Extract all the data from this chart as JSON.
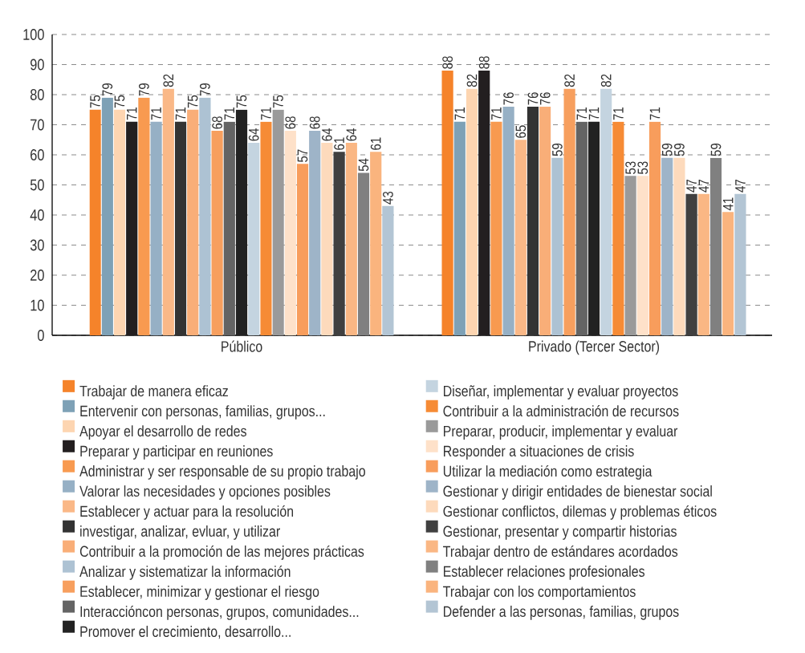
{
  "chart_data": {
    "type": "bar",
    "categories": [
      "Público",
      "Privado (Tercer Sector)"
    ],
    "series": [
      {
        "name": "Trabajar de manera eficaz",
        "color": "#f5832a",
        "values": [
          75,
          88
        ]
      },
      {
        "name": "Entervenir con personas, familias, grupos...",
        "color": "#7ea1b6",
        "values": [
          79,
          71
        ]
      },
      {
        "name": "Apoyar el desarrollo de redes",
        "color": "#fdd5b1",
        "values": [
          75,
          82
        ]
      },
      {
        "name": "Preparar y participar en reuniones",
        "color": "#231f20",
        "values": [
          71,
          88
        ]
      },
      {
        "name": "Administrar y ser responsable de su propio trabajo",
        "color": "#f89a50",
        "values": [
          79,
          71
        ]
      },
      {
        "name": "Valorar las necesidades y opciones posibles",
        "color": "#96b0c5",
        "values": [
          71,
          76
        ]
      },
      {
        "name": "Establecer y actuar para la resolución",
        "color": "#fab887",
        "values": [
          82,
          65
        ]
      },
      {
        "name": "investigar, analizar, evluar, y utilizar",
        "color": "#333333",
        "values": [
          71,
          76
        ]
      },
      {
        "name": "Contribuir a la promoción de las mejores prácticas",
        "color": "#f9ae78",
        "values": [
          75,
          76
        ]
      },
      {
        "name": "Analizar y sistematizar la información",
        "color": "#adc2d3",
        "values": [
          79,
          59
        ]
      },
      {
        "name": "Establecer, minimizar y gestionar el riesgo",
        "color": "#f79f5e",
        "values": [
          68,
          82
        ]
      },
      {
        "name": "Interaccióncon personas, grupos, comunidades...",
        "color": "#646464",
        "values": [
          71,
          71
        ]
      },
      {
        "name": "Promover el crecimiento, desarrollo...",
        "color": "#222222",
        "values": [
          75,
          71
        ]
      },
      {
        "name": "Diseñar, implementar y evaluar proyectos",
        "color": "#c4d4e0",
        "values": [
          64,
          82
        ]
      },
      {
        "name": "Contribuir a la administración de recursos",
        "color": "#f68b35",
        "values": [
          71,
          71
        ]
      },
      {
        "name": "Preparar, producir, implementar y evaluar",
        "color": "#9a9a9a",
        "values": [
          75,
          53
        ]
      },
      {
        "name": "Responder a situaciones de crisis",
        "color": "#fee1c9",
        "values": [
          68,
          53
        ]
      },
      {
        "name": "Utilizar la mediación como estrategia",
        "color": "#f89d5c",
        "values": [
          57,
          71
        ]
      },
      {
        "name": "Gestionar y dirigir entidades de bienestar social",
        "color": "#9eb4c8",
        "values": [
          68,
          59
        ]
      },
      {
        "name": "Gestionar conflictos, dilemas y problemas éticos",
        "color": "#fddabc",
        "values": [
          64,
          59
        ]
      },
      {
        "name": "Gestionar, presentar y compartir historias",
        "color": "#404040",
        "values": [
          61,
          47
        ]
      },
      {
        "name": "Trabajar dentro de estándares acordados",
        "color": "#fab784",
        "values": [
          64,
          47
        ]
      },
      {
        "name": "Establecer relaciones profesionales",
        "color": "#808080",
        "values": [
          54,
          59
        ]
      },
      {
        "name": "Trabajar con los comportamientos",
        "color": "#fab47e",
        "values": [
          61,
          41
        ]
      },
      {
        "name": "Defender a las personas, familias, grupos",
        "color": "#b3c5d4",
        "values": [
          43,
          47
        ]
      }
    ],
    "ylim": [
      0,
      100
    ],
    "yticks": [
      0,
      10,
      20,
      30,
      40,
      50,
      60,
      70,
      80,
      90,
      100
    ],
    "grid": "y",
    "legend": "bottom",
    "data_labels": true
  }
}
